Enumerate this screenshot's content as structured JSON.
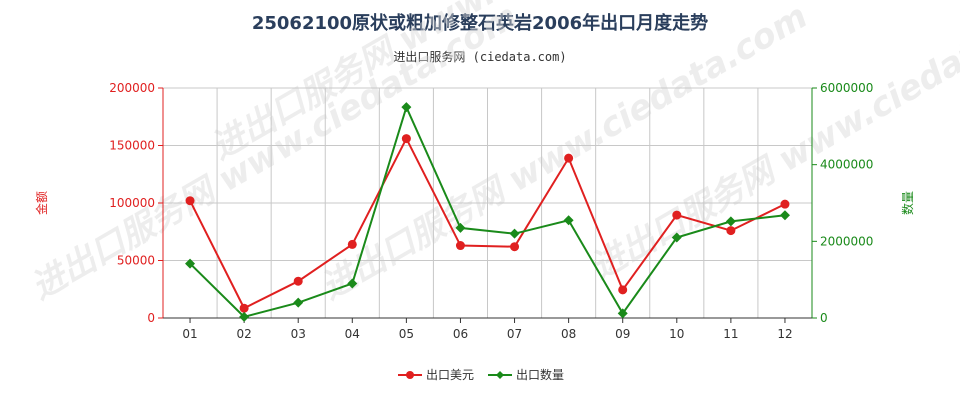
{
  "header": {
    "title": "25062100原状或粗加修整石英岩2006年出口月度走势",
    "subtitle": "进出口服务网 (ciedata.com)"
  },
  "watermark_text": "进出口服务网 www.ciedata.com",
  "colors": {
    "export_value": "#e02020",
    "export_quantity": "#1a8a1a",
    "grid": "#c8c8c8",
    "axis": "#333333"
  },
  "chart_data": {
    "type": "line",
    "categories": [
      "01",
      "02",
      "03",
      "04",
      "05",
      "06",
      "07",
      "08",
      "09",
      "10",
      "11",
      "12"
    ],
    "y_left": {
      "label": "金额",
      "lim": [
        0,
        200000
      ],
      "ticks": [
        "0",
        "50000",
        "100000",
        "150000",
        "200000"
      ]
    },
    "y_right": {
      "label": "数量",
      "lim": [
        0,
        6000000
      ],
      "ticks": [
        "0",
        "2000000",
        "4000000",
        "6000000"
      ]
    },
    "series": [
      {
        "name": "出口美元",
        "axis": "left",
        "marker": "circle",
        "values": [
          102000,
          8500,
          32000,
          64000,
          156000,
          63000,
          62000,
          139000,
          24500,
          89500,
          76000,
          99000
        ]
      },
      {
        "name": "出口数量",
        "axis": "right",
        "marker": "diamond",
        "values": [
          1420000,
          30000,
          400000,
          900000,
          5500000,
          2350000,
          2200000,
          2550000,
          120000,
          2100000,
          2520000,
          2680000
        ]
      }
    ],
    "grid": true,
    "legend_position": "bottom"
  }
}
